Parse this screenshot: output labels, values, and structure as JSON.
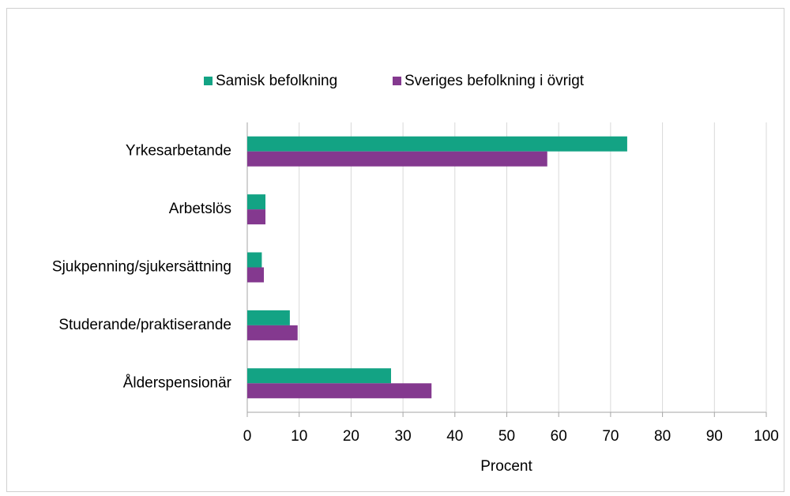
{
  "chart_data": {
    "type": "bar",
    "orientation": "horizontal",
    "categories": [
      "Yrkesarbetande",
      "Arbetslös",
      "Sjukpenning/sjukersättning",
      "Studerande/praktiserande",
      "Ålderspensionär"
    ],
    "series": [
      {
        "name": "Samisk befolkning",
        "color": "#13a384",
        "values": [
          73.2,
          3.5,
          2.8,
          8.2,
          27.7
        ]
      },
      {
        "name": "Sveriges befolkning i övrigt",
        "color": "#84398f",
        "values": [
          57.8,
          3.5,
          3.2,
          9.7,
          35.5
        ]
      }
    ],
    "x_label": "Procent",
    "xlim": [
      0,
      100
    ],
    "xticks": [
      0,
      10,
      20,
      30,
      40,
      50,
      60,
      70,
      80,
      90,
      100
    ],
    "grid": true,
    "legend": "top"
  }
}
